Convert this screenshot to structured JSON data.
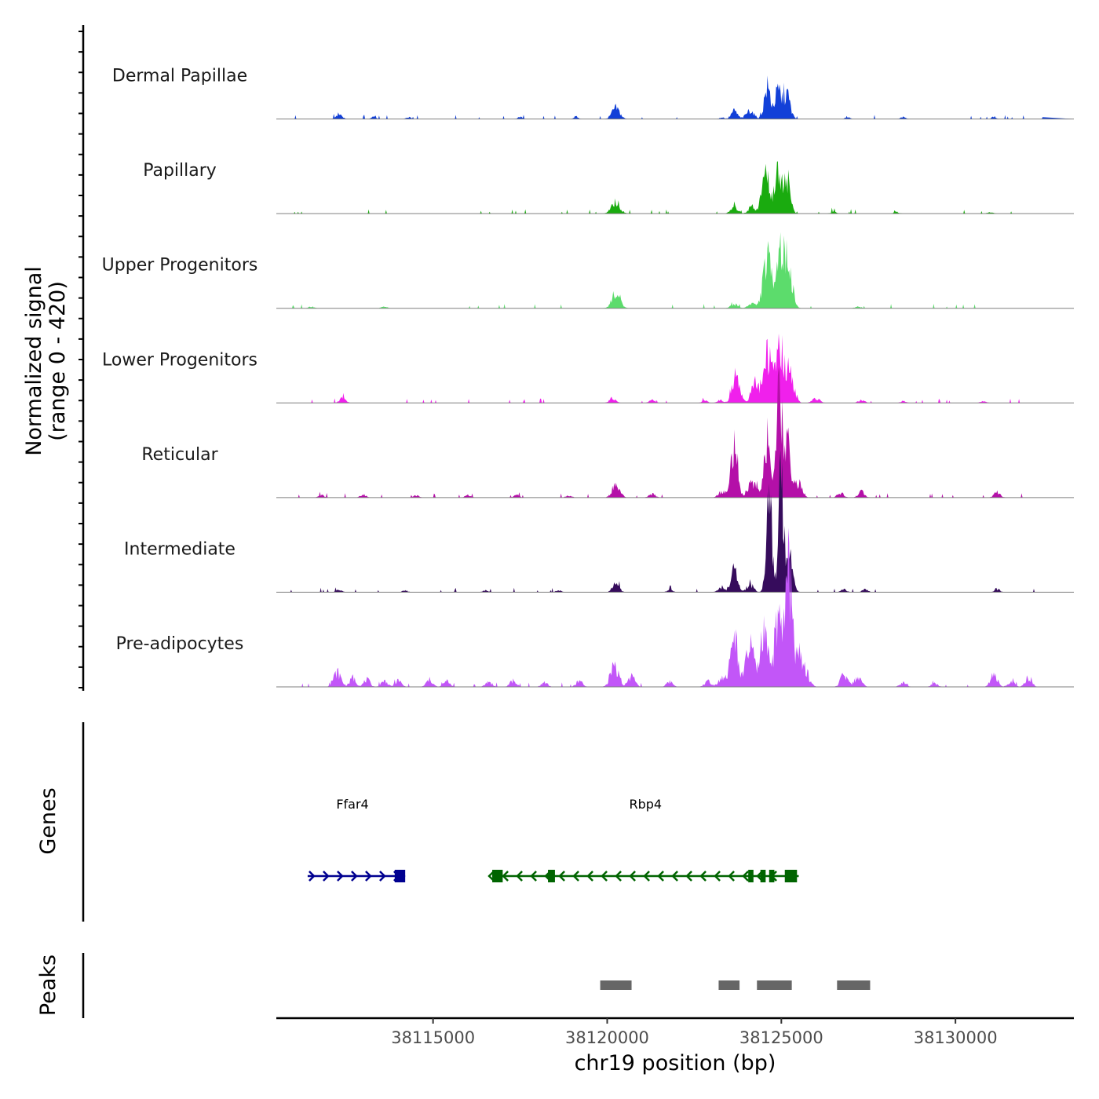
{
  "chart_data": {
    "type": "area",
    "title": "",
    "ylabel": "Normalized signal",
    "ylabel_range": "(range 0 - 420)",
    "xlabel": "chr19 position (bp)",
    "xlim": [
      38110500,
      38133400
    ],
    "ylim": [
      0,
      420
    ],
    "x_ticks": [
      38115000,
      38120000,
      38125000,
      38130000
    ],
    "x_tick_labels": [
      "38115000",
      "38120000",
      "38125000",
      "38130000"
    ],
    "series": [
      {
        "name": "Dermal Papillae",
        "color": "#1240d8",
        "peaks": [
          [
            38112300,
            18,
            80
          ],
          [
            38113300,
            8,
            60
          ],
          [
            38114300,
            8,
            60
          ],
          [
            38117500,
            8,
            60
          ],
          [
            38119100,
            8,
            60
          ],
          [
            38120250,
            38,
            110
          ],
          [
            38123300,
            6,
            60
          ],
          [
            38123650,
            28,
            90
          ],
          [
            38124100,
            30,
            110
          ],
          [
            38124600,
            110,
            90
          ],
          [
            38124900,
            90,
            90
          ],
          [
            38125150,
            88,
            100
          ],
          [
            38126900,
            8,
            60
          ],
          [
            38128500,
            8,
            60
          ],
          [
            38131100,
            8,
            60
          ]
        ]
      },
      {
        "name": "Papillary",
        "color": "#1aab0f",
        "peaks": [
          [
            38120250,
            40,
            120
          ],
          [
            38123650,
            22,
            100
          ],
          [
            38124150,
            22,
            100
          ],
          [
            38124550,
            140,
            110
          ],
          [
            38124900,
            130,
            100
          ],
          [
            38125150,
            128,
            100
          ],
          [
            38126500,
            6,
            80
          ],
          [
            38128300,
            6,
            80
          ],
          [
            38131000,
            5,
            80
          ]
        ]
      },
      {
        "name": "Upper Progenitors",
        "color": "#5cdc6c",
        "peaks": [
          [
            38111500,
            6,
            80
          ],
          [
            38113600,
            6,
            80
          ],
          [
            38120250,
            48,
            120
          ],
          [
            38123650,
            14,
            100
          ],
          [
            38124150,
            18,
            100
          ],
          [
            38124600,
            170,
            120
          ],
          [
            38124950,
            200,
            110
          ],
          [
            38125200,
            150,
            110
          ],
          [
            38127200,
            6,
            80
          ]
        ]
      },
      {
        "name": "Lower Progenitors",
        "color": "#f020ec",
        "peaks": [
          [
            38112400,
            16,
            90
          ],
          [
            38120150,
            16,
            90
          ],
          [
            38121300,
            10,
            80
          ],
          [
            38122800,
            8,
            80
          ],
          [
            38123250,
            10,
            80
          ],
          [
            38123700,
            95,
            110
          ],
          [
            38124250,
            70,
            110
          ],
          [
            38124600,
            170,
            110
          ],
          [
            38124950,
            200,
            110
          ],
          [
            38125250,
            110,
            110
          ],
          [
            38126000,
            16,
            100
          ],
          [
            38127300,
            10,
            90
          ],
          [
            38128500,
            6,
            80
          ],
          [
            38130800,
            6,
            80
          ]
        ]
      },
      {
        "name": "Reticular",
        "color": "#b410a8",
        "peaks": [
          [
            38111800,
            8,
            80
          ],
          [
            38113000,
            10,
            80
          ],
          [
            38114500,
            8,
            80
          ],
          [
            38116000,
            8,
            80
          ],
          [
            38117400,
            8,
            80
          ],
          [
            38118900,
            8,
            80
          ],
          [
            38120250,
            45,
            110
          ],
          [
            38121300,
            12,
            90
          ],
          [
            38123300,
            22,
            100
          ],
          [
            38123650,
            200,
            90
          ],
          [
            38124100,
            40,
            100
          ],
          [
            38124300,
            30,
            100
          ],
          [
            38124600,
            210,
            90
          ],
          [
            38124950,
            370,
            80
          ],
          [
            38125200,
            180,
            90
          ],
          [
            38125500,
            50,
            100
          ],
          [
            38126700,
            15,
            90
          ],
          [
            38127300,
            20,
            90
          ],
          [
            38131200,
            18,
            90
          ]
        ]
      },
      {
        "name": "Intermediate",
        "color": "#360c5c",
        "peaks": [
          [
            38112300,
            8,
            80
          ],
          [
            38114200,
            6,
            80
          ],
          [
            38116500,
            6,
            80
          ],
          [
            38118600,
            6,
            80
          ],
          [
            38120250,
            28,
            100
          ],
          [
            38121800,
            8,
            80
          ],
          [
            38123300,
            18,
            100
          ],
          [
            38123650,
            80,
            90
          ],
          [
            38124100,
            28,
            100
          ],
          [
            38124650,
            330,
            80
          ],
          [
            38125000,
            390,
            80
          ],
          [
            38125250,
            130,
            90
          ],
          [
            38126800,
            10,
            80
          ],
          [
            38127400,
            10,
            80
          ],
          [
            38131200,
            12,
            80
          ]
        ]
      },
      {
        "name": "Pre-adipocytes",
        "color": "#c256f8",
        "peaks": [
          [
            38112250,
            50,
            110
          ],
          [
            38112700,
            30,
            90
          ],
          [
            38113100,
            25,
            90
          ],
          [
            38113600,
            20,
            90
          ],
          [
            38114000,
            22,
            90
          ],
          [
            38114900,
            25,
            90
          ],
          [
            38115400,
            20,
            90
          ],
          [
            38116600,
            18,
            90
          ],
          [
            38117300,
            22,
            90
          ],
          [
            38118200,
            15,
            90
          ],
          [
            38119200,
            20,
            90
          ],
          [
            38120200,
            80,
            110
          ],
          [
            38120700,
            40,
            100
          ],
          [
            38121800,
            18,
            90
          ],
          [
            38122900,
            20,
            100
          ],
          [
            38123300,
            35,
            100
          ],
          [
            38123650,
            170,
            110
          ],
          [
            38124100,
            150,
            110
          ],
          [
            38124500,
            180,
            110
          ],
          [
            38124900,
            220,
            110
          ],
          [
            38125200,
            420,
            90
          ],
          [
            38125450,
            120,
            110
          ],
          [
            38125700,
            50,
            110
          ],
          [
            38126800,
            40,
            100
          ],
          [
            38127200,
            35,
            100
          ],
          [
            38128500,
            15,
            90
          ],
          [
            38129400,
            12,
            90
          ],
          [
            38131100,
            40,
            100
          ],
          [
            38131600,
            20,
            90
          ],
          [
            38132100,
            35,
            90
          ]
        ]
      }
    ],
    "genes": [
      {
        "name": "Ffar4",
        "strand": "+",
        "start": 38111400,
        "end": 38114200,
        "color": "#000090",
        "exons": [
          [
            38113900,
            38114200
          ]
        ]
      },
      {
        "name": "Rbp4",
        "strand": "-",
        "start": 38116700,
        "end": 38125500,
        "color": "#006400",
        "exons": [
          [
            38116700,
            38117000
          ],
          [
            38118300,
            38118500
          ],
          [
            38124050,
            38124200
          ],
          [
            38124400,
            38124550
          ],
          [
            38124650,
            38124800
          ],
          [
            38125100,
            38125450
          ]
        ]
      }
    ],
    "peaks_track": {
      "label": "Peaks",
      "color": "#666666",
      "regions": [
        [
          38119800,
          38120700
        ],
        [
          38123200,
          38123800
        ],
        [
          38124300,
          38125300
        ],
        [
          38126600,
          38127550
        ]
      ]
    },
    "genes_track_label": "Genes"
  }
}
